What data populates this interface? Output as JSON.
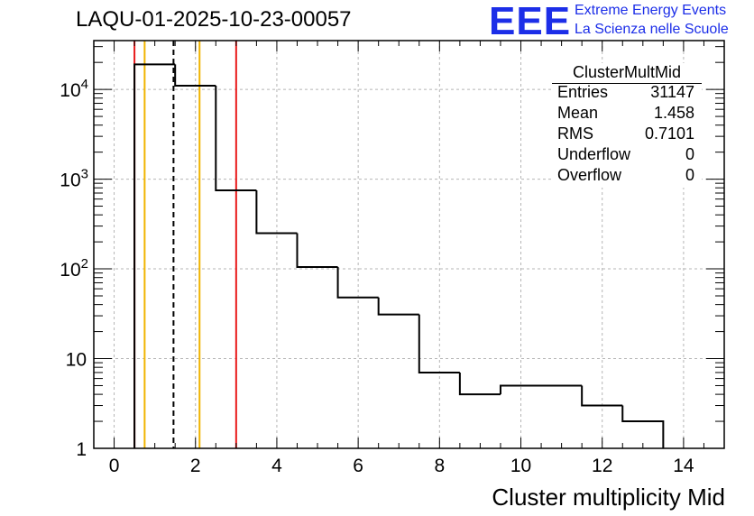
{
  "title": "LAQU-01-2025-10-23-00057",
  "logo": {
    "text": "EEE",
    "line1": "Extreme Energy Events",
    "line2": "La Scienza nelle Scuole",
    "color": "#1c2ee8"
  },
  "stats_box": {
    "name": "ClusterMultMid",
    "rows": [
      {
        "label": "Entries",
        "value": "31147"
      },
      {
        "label": "Mean",
        "value": "1.458"
      },
      {
        "label": "RMS",
        "value": "0.7101"
      },
      {
        "label": "Underflow",
        "value": "0"
      },
      {
        "label": "Overflow",
        "value": "0"
      }
    ]
  },
  "chart_data": {
    "type": "histogram",
    "title": "LAQU-01-2025-10-23-00057",
    "xlabel": "Cluster multiplicity Mid",
    "ylabel": "",
    "xlim": [
      -0.5,
      15
    ],
    "ylim": [
      1,
      35000
    ],
    "yscale": "log",
    "grid": true,
    "x_ticks": [
      0,
      2,
      4,
      6,
      8,
      10,
      12,
      14
    ],
    "x_tick_labels": [
      "0",
      "2",
      "4",
      "6",
      "8",
      "10",
      "12",
      "14"
    ],
    "y_ticks": [
      1,
      10,
      100,
      1000,
      10000
    ],
    "y_tick_labels": [
      {
        "base": "1",
        "exp": ""
      },
      {
        "base": "10",
        "exp": ""
      },
      {
        "base": "10",
        "exp": "2"
      },
      {
        "base": "10",
        "exp": "3"
      },
      {
        "base": "10",
        "exp": "4"
      }
    ],
    "bins": [
      {
        "low": 0.5,
        "high": 1.5,
        "count": 19000
      },
      {
        "low": 1.5,
        "high": 2.5,
        "count": 11000
      },
      {
        "low": 2.5,
        "high": 3.5,
        "count": 750
      },
      {
        "low": 3.5,
        "high": 4.5,
        "count": 250
      },
      {
        "low": 4.5,
        "high": 5.5,
        "count": 105
      },
      {
        "low": 5.5,
        "high": 6.5,
        "count": 48
      },
      {
        "low": 6.5,
        "high": 7.5,
        "count": 31
      },
      {
        "low": 7.5,
        "high": 8.5,
        "count": 7
      },
      {
        "low": 8.5,
        "high": 9.5,
        "count": 4
      },
      {
        "low": 9.5,
        "high": 11.5,
        "count": 5
      },
      {
        "low": 11.5,
        "high": 12.5,
        "count": 3
      },
      {
        "low": 12.5,
        "high": 13.5,
        "count": 2
      }
    ],
    "markers": [
      {
        "name": "red-line-low",
        "x": 0.5,
        "color": "#e8191a",
        "style": "solid"
      },
      {
        "name": "orange-line-low",
        "x": 0.75,
        "color": "#f0b400",
        "style": "solid"
      },
      {
        "name": "mean-line",
        "x": 1.46,
        "color": "#000000",
        "style": "dashed"
      },
      {
        "name": "orange-line-high",
        "x": 2.1,
        "color": "#f0b400",
        "style": "solid"
      },
      {
        "name": "red-line-high",
        "x": 3.0,
        "color": "#e8191a",
        "style": "solid"
      }
    ]
  }
}
